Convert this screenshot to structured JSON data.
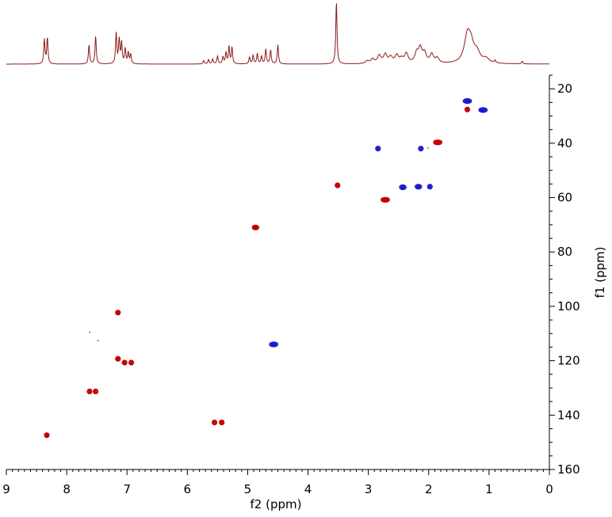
{
  "chart_data": {
    "type": "heatmap",
    "subtype": "2D NMR HSQC contour plot with 1D projection",
    "xlabel": "f2 (ppm)",
    "ylabel": "f1 (ppm)",
    "xlim": [
      9,
      0
    ],
    "ylim": [
      15,
      160
    ],
    "x_ticks": [
      9,
      8,
      7,
      6,
      5,
      4,
      3,
      2,
      1,
      0
    ],
    "x_tick_labels": [
      "9",
      "8",
      "7",
      "6",
      "5",
      "4",
      "3",
      "2",
      "1",
      "0"
    ],
    "y_ticks": [
      20,
      40,
      60,
      80,
      100,
      120,
      140,
      160
    ],
    "y_tick_labels": [
      "20",
      "40",
      "60",
      "80",
      "100",
      "120",
      "140",
      "160"
    ],
    "x_inverted": true,
    "y_inverted": true,
    "grid": false,
    "colors": {
      "positive": "#c00000",
      "negative": "#1a1acc",
      "projection": "#8b1a1a"
    },
    "peaks": [
      {
        "x": 1.36,
        "y": 24.5,
        "width": 0.14,
        "phase": "negative"
      },
      {
        "x": 1.36,
        "y": 27.6,
        "width": 0.06,
        "phase": "positive"
      },
      {
        "x": 1.1,
        "y": 27.8,
        "width": 0.14,
        "phase": "negative"
      },
      {
        "x": 1.85,
        "y": 39.7,
        "width": 0.14,
        "phase": "positive"
      },
      {
        "x": 2.84,
        "y": 42.0,
        "width": 0.08,
        "phase": "negative"
      },
      {
        "x": 2.13,
        "y": 42.0,
        "width": 0.06,
        "phase": "negative"
      },
      {
        "x": 3.51,
        "y": 55.5,
        "width": 0.05,
        "phase": "positive"
      },
      {
        "x": 2.43,
        "y": 56.2,
        "width": 0.11,
        "phase": "negative"
      },
      {
        "x": 2.17,
        "y": 56.0,
        "width": 0.11,
        "phase": "negative"
      },
      {
        "x": 1.98,
        "y": 56.0,
        "width": 0.05,
        "phase": "negative"
      },
      {
        "x": 2.72,
        "y": 60.8,
        "width": 0.14,
        "phase": "positive"
      },
      {
        "x": 4.87,
        "y": 71.0,
        "width": 0.11,
        "phase": "positive"
      },
      {
        "x": 7.15,
        "y": 102.3,
        "width": 0.07,
        "phase": "positive"
      },
      {
        "x": 4.57,
        "y": 114.0,
        "width": 0.14,
        "phase": "negative"
      },
      {
        "x": 7.15,
        "y": 119.3,
        "width": 0.07,
        "phase": "positive"
      },
      {
        "x": 7.04,
        "y": 120.7,
        "width": 0.06,
        "phase": "positive"
      },
      {
        "x": 6.93,
        "y": 120.7,
        "width": 0.05,
        "phase": "positive"
      },
      {
        "x": 7.62,
        "y": 131.3,
        "width": 0.05,
        "phase": "positive"
      },
      {
        "x": 7.52,
        "y": 131.3,
        "width": 0.05,
        "phase": "positive"
      },
      {
        "x": 5.55,
        "y": 142.7,
        "width": 0.04,
        "phase": "positive"
      },
      {
        "x": 5.43,
        "y": 142.7,
        "width": 0.05,
        "phase": "positive"
      },
      {
        "x": 8.33,
        "y": 147.4,
        "width": 0.07,
        "phase": "positive"
      }
    ],
    "projection_1h": [
      {
        "x": 8.37,
        "h": 0.28
      },
      {
        "x": 8.32,
        "h": 0.3
      },
      {
        "x": 7.63,
        "h": 0.22
      },
      {
        "x": 7.52,
        "h": 0.32
      },
      {
        "x": 7.18,
        "h": 0.35
      },
      {
        "x": 7.13,
        "h": 0.28
      },
      {
        "x": 7.09,
        "h": 0.24
      },
      {
        "x": 7.03,
        "h": 0.17
      },
      {
        "x": 6.98,
        "h": 0.13
      },
      {
        "x": 6.94,
        "h": 0.11
      },
      {
        "x": 5.73,
        "h": 0.04
      },
      {
        "x": 5.65,
        "h": 0.05
      },
      {
        "x": 5.58,
        "h": 0.06
      },
      {
        "x": 5.5,
        "h": 0.09
      },
      {
        "x": 5.41,
        "h": 0.08
      },
      {
        "x": 5.36,
        "h": 0.13
      },
      {
        "x": 5.31,
        "h": 0.2
      },
      {
        "x": 5.26,
        "h": 0.19
      },
      {
        "x": 4.97,
        "h": 0.08
      },
      {
        "x": 4.91,
        "h": 0.1
      },
      {
        "x": 4.84,
        "h": 0.12
      },
      {
        "x": 4.77,
        "h": 0.09
      },
      {
        "x": 4.7,
        "h": 0.17
      },
      {
        "x": 4.62,
        "h": 0.16
      },
      {
        "x": 4.5,
        "h": 0.22
      },
      {
        "x": 3.53,
        "h": 0.72
      },
      {
        "x": 3.02,
        "h": 0.03
      },
      {
        "x": 2.93,
        "h": 0.05
      },
      {
        "x": 2.82,
        "h": 0.09
      },
      {
        "x": 2.72,
        "h": 0.1
      },
      {
        "x": 2.63,
        "h": 0.07
      },
      {
        "x": 2.53,
        "h": 0.09
      },
      {
        "x": 2.45,
        "h": 0.05
      },
      {
        "x": 2.37,
        "h": 0.11
      },
      {
        "x": 2.2,
        "h": 0.11
      },
      {
        "x": 2.14,
        "h": 0.16
      },
      {
        "x": 2.07,
        "h": 0.11
      },
      {
        "x": 1.95,
        "h": 0.1
      },
      {
        "x": 1.86,
        "h": 0.06
      },
      {
        "x": 1.36,
        "h": 0.29
      },
      {
        "x": 1.3,
        "h": 0.18
      },
      {
        "x": 1.2,
        "h": 0.11
      },
      {
        "x": 1.05,
        "h": 0.05
      },
      {
        "x": 0.9,
        "h": 0.03
      },
      {
        "x": 0.45,
        "h": 0.03
      }
    ],
    "spurious_points": [
      {
        "x": 7.62,
        "y": 109.5
      },
      {
        "x": 7.48,
        "y": 112.6
      },
      {
        "x": 2.01,
        "y": 41.8
      }
    ]
  }
}
